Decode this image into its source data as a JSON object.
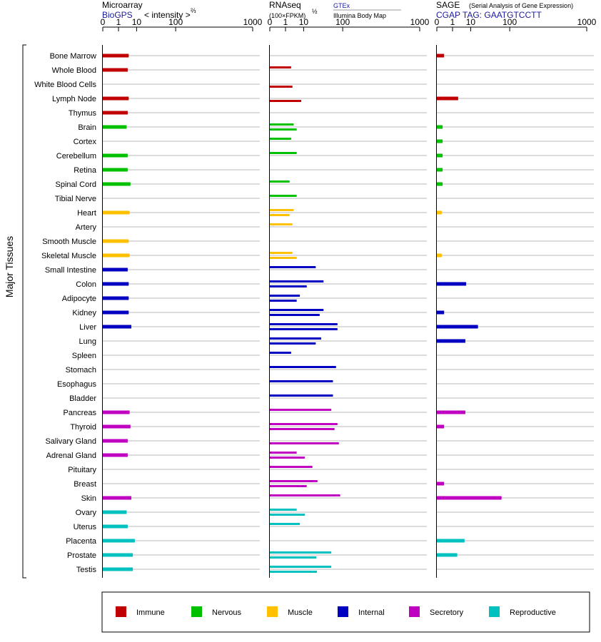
{
  "colors": {
    "Immune": "#c00000",
    "Nervous": "#00c000",
    "Muscle": "#ffc000",
    "Internal": "#0000c0",
    "Secretory": "#c000c0",
    "Reproductive": "#00c0c0"
  },
  "y_axis_label": "Major Tissues",
  "tick_labels": [
    "0",
    "1",
    "10",
    "100",
    "1000"
  ],
  "legend": [
    "Immune",
    "Nervous",
    "Muscle",
    "Internal",
    "Secretory",
    "Reproductive"
  ],
  "panels": {
    "microarray": {
      "title": "Microarray",
      "source": "BioGPS",
      "measure": "< intensity >",
      "exponent": "⅔"
    },
    "rnaseq": {
      "title": "RNAseq",
      "measure": "(100×FPKM)",
      "exponent": "½",
      "source1": "GTEx",
      "source2": "Illumina Body Map"
    },
    "sage": {
      "title": "SAGE",
      "subtitle": "(Serial Analysis of Gene Expression)",
      "tag": "CGAP TAG: GAATGTCCTT"
    }
  },
  "chart_data": {
    "type": "bar",
    "x_scale": "power (cube-root style), ticks 0, 1, 10, 100, 1000",
    "xlim": [
      0,
      1000
    ],
    "categories": [
      "Bone Marrow",
      "Whole Blood",
      "White Blood Cells",
      "Lymph Node",
      "Thymus",
      "Brain",
      "Cortex",
      "Cerebellum",
      "Retina",
      "Spinal Cord",
      "Tibial Nerve",
      "Heart",
      "Artery",
      "Smooth Muscle",
      "Skeletal Muscle",
      "Small Intestine",
      "Colon",
      "Adipocyte",
      "Kidney",
      "Liver",
      "Lung",
      "Spleen",
      "Stomach",
      "Esophagus",
      "Bladder",
      "Pancreas",
      "Thyroid",
      "Salivary Gland",
      "Adrenal Gland",
      "Pituitary",
      "Breast",
      "Skin",
      "Ovary",
      "Uterus",
      "Placenta",
      "Prostate",
      "Testis"
    ],
    "groups": [
      "Immune",
      "Immune",
      "Immune",
      "Immune",
      "Immune",
      "Nervous",
      "Nervous",
      "Nervous",
      "Nervous",
      "Nervous",
      "Nervous",
      "Muscle",
      "Muscle",
      "Muscle",
      "Muscle",
      "Internal",
      "Internal",
      "Internal",
      "Internal",
      "Internal",
      "Internal",
      "Internal",
      "Internal",
      "Internal",
      "Internal",
      "Secretory",
      "Secretory",
      "Secretory",
      "Secretory",
      "Secretory",
      "Secretory",
      "Secretory",
      "Reproductive",
      "Reproductive",
      "Reproductive",
      "Reproductive",
      "Reproductive"
    ],
    "series": [
      {
        "name": "Microarray",
        "values": [
          4.5,
          4,
          null,
          4.5,
          4,
          3.5,
          null,
          4,
          4,
          5.5,
          null,
          5,
          null,
          4.5,
          5,
          4,
          4.5,
          4.5,
          4.5,
          6,
          null,
          null,
          null,
          null,
          null,
          5,
          5.5,
          4,
          4,
          null,
          null,
          6,
          3.5,
          4,
          8.5,
          7,
          7
        ]
      },
      {
        "name": "RNAseq (GTEx)",
        "values": [
          null,
          2.5,
          null,
          null,
          null,
          3.5,
          2.5,
          5,
          null,
          2,
          5,
          3.5,
          3,
          null,
          3,
          25,
          40,
          7,
          40,
          80,
          35,
          2.5,
          75,
          65,
          65,
          60,
          80,
          null,
          5,
          20,
          28,
          90,
          5,
          7,
          null,
          60,
          60
        ]
      },
      {
        "name": "RNAseq (Illumina Body Map)",
        "values": [
          null,
          null,
          3,
          8,
          null,
          5,
          null,
          null,
          null,
          null,
          null,
          2,
          null,
          null,
          5,
          null,
          13,
          5,
          32,
          80,
          25,
          null,
          null,
          null,
          null,
          null,
          70,
          85,
          11,
          null,
          13,
          null,
          11,
          null,
          null,
          26,
          27
        ]
      },
      {
        "name": "SAGE",
        "values": [
          0.1,
          null,
          null,
          2.5,
          null,
          0.05,
          0.05,
          0.05,
          0.05,
          0.05,
          null,
          0.03,
          null,
          null,
          0.03,
          null,
          6.5,
          null,
          0.1,
          18,
          6,
          null,
          null,
          null,
          null,
          6,
          0.1,
          null,
          null,
          null,
          0.1,
          70,
          null,
          null,
          5.5,
          2.2,
          null
        ]
      }
    ]
  }
}
